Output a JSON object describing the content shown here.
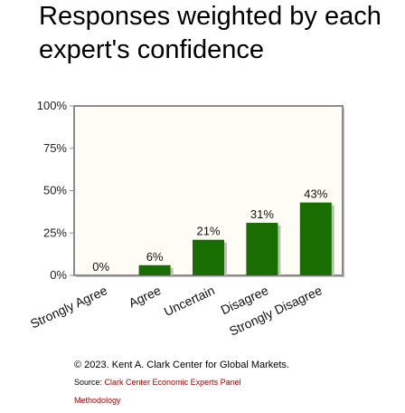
{
  "title_lines": [
    "Responses weighted by each",
    "expert's confidence"
  ],
  "chart_data": {
    "type": "bar",
    "categories": [
      "Strongly Agree",
      "Agree",
      "Uncertain",
      "Disagree",
      "Strongly Disagree"
    ],
    "values": [
      0,
      6,
      21,
      31,
      43
    ],
    "data_labels": [
      "0%",
      "6%",
      "21%",
      "31%",
      "43%"
    ],
    "ylim": [
      0,
      100
    ],
    "yticks": [
      "0%",
      "25%",
      "50%",
      "75%",
      "100%"
    ],
    "ytick_values": [
      0,
      25,
      50,
      75,
      100
    ],
    "grid": false,
    "colors": {
      "bar": "#186e00",
      "plot_bg": "#fffcf5",
      "frame": "#8c8c8c",
      "shadow": "#bdbdbd"
    }
  },
  "footer": {
    "copyright": "© 2023. Kent A. Clark Center for Global Markets.",
    "source_prefix": "Source: ",
    "source_link": "Clark Center Economic Experts Panel",
    "methodology": "Methodology"
  }
}
